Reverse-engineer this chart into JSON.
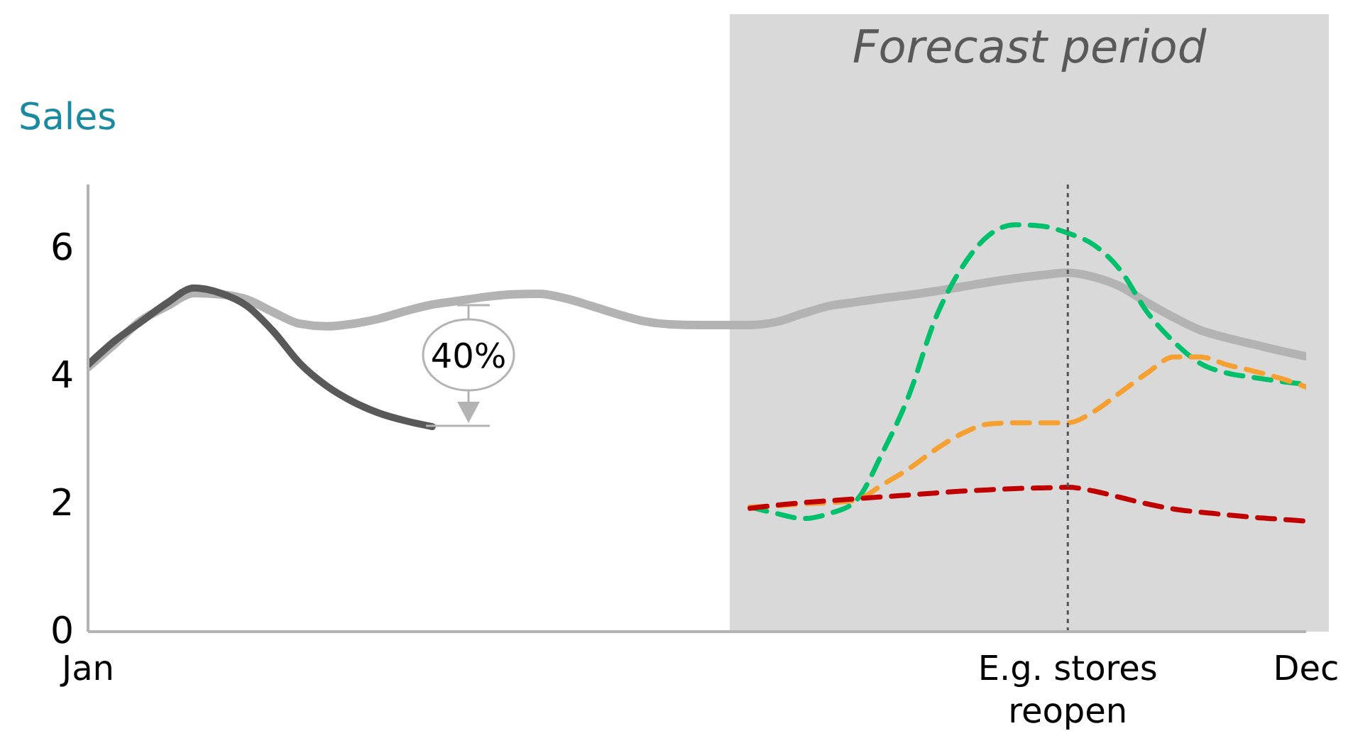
{
  "chart_data": {
    "type": "line",
    "ylabel": "Sales",
    "categories": [
      "Jan",
      null,
      null,
      null,
      null,
      null,
      null,
      null,
      null,
      null,
      null,
      null,
      null,
      null,
      null,
      null,
      null,
      null,
      null,
      null,
      null,
      null,
      null,
      null,
      null,
      null,
      null,
      null,
      null,
      null,
      null,
      null,
      null,
      null,
      null,
      null,
      null,
      "E.g. stores reopen",
      null,
      null,
      null,
      null,
      null,
      null,
      null,
      null,
      "Dec"
    ],
    "ylim": [
      0,
      7
    ],
    "yticks": [
      0,
      2,
      4,
      6
    ],
    "marker": "none",
    "line_style": "solid",
    "series": [
      {
        "color": "#b3b3b3",
        "values": [
          4.14,
          4.5,
          4.87,
          5.1,
          5.3,
          5.28,
          5.2,
          5.0,
          4.82,
          4.78,
          4.82,
          4.9,
          5.02,
          5.12,
          5.18,
          5.24,
          5.28,
          5.29,
          5.22,
          5.1,
          4.97,
          4.86,
          4.81,
          4.8,
          4.8,
          4.8,
          4.85,
          4.98,
          5.1,
          5.16,
          5.22,
          5.27,
          5.33,
          5.4,
          5.47,
          5.53,
          5.58,
          5.62,
          5.55,
          5.4,
          5.15,
          4.92,
          4.72,
          4.6,
          4.5,
          4.4,
          4.31
        ]
      },
      {
        "color": "#595959",
        "values": [
          4.18,
          4.55,
          4.85,
          5.15,
          5.38,
          5.3,
          5.1,
          4.7,
          4.2,
          3.85,
          3.6,
          3.42,
          3.3,
          3.21,
          null,
          null,
          null,
          null,
          null,
          null,
          null,
          null,
          null,
          null,
          null,
          null,
          null,
          null,
          null,
          null,
          null,
          null,
          null,
          null,
          null,
          null,
          null,
          null,
          null,
          null,
          null,
          null,
          null,
          null,
          null,
          null,
          null
        ]
      },
      {
        "color": "#00c06b",
        "line_style": "dashed",
        "values": [
          null,
          null,
          null,
          null,
          null,
          null,
          null,
          null,
          null,
          null,
          null,
          null,
          null,
          null,
          null,
          null,
          null,
          null,
          null,
          null,
          null,
          null,
          null,
          null,
          null,
          1.95,
          1.85,
          1.77,
          1.85,
          2.05,
          2.8,
          3.7,
          4.9,
          5.7,
          6.2,
          6.37,
          6.35,
          6.24,
          6.05,
          5.65,
          5.0,
          4.54,
          4.2,
          4.05,
          3.98,
          3.92,
          3.87
        ]
      },
      {
        "color": "#f5a030",
        "line_style": "dashed",
        "values": [
          null,
          null,
          null,
          null,
          null,
          null,
          null,
          null,
          null,
          null,
          null,
          null,
          null,
          null,
          null,
          null,
          null,
          null,
          null,
          null,
          null,
          null,
          null,
          null,
          null,
          1.95,
          1.97,
          2.0,
          2.02,
          2.06,
          2.3,
          2.55,
          2.85,
          3.1,
          3.25,
          3.27,
          3.27,
          3.27,
          3.45,
          3.75,
          4.05,
          4.3,
          4.3,
          4.18,
          4.08,
          3.97,
          3.83
        ]
      },
      {
        "color": "#c00000",
        "line_style": "dashed",
        "values": [
          null,
          null,
          null,
          null,
          null,
          null,
          null,
          null,
          null,
          null,
          null,
          null,
          null,
          null,
          null,
          null,
          null,
          null,
          null,
          null,
          null,
          null,
          null,
          null,
          null,
          1.93,
          1.98,
          2.02,
          2.05,
          2.08,
          2.11,
          2.14,
          2.17,
          2.2,
          2.22,
          2.24,
          2.25,
          2.26,
          2.2,
          2.1,
          2.0,
          1.92,
          1.87,
          1.83,
          1.79,
          1.76,
          1.73
        ]
      }
    ],
    "ref_lines": [
      {
        "axis": "x",
        "value": "E.g. stores reopen",
        "color": "#555555",
        "line_style": "dotted"
      }
    ],
    "annotations": [
      "40%",
      "Forecast period"
    ]
  }
}
